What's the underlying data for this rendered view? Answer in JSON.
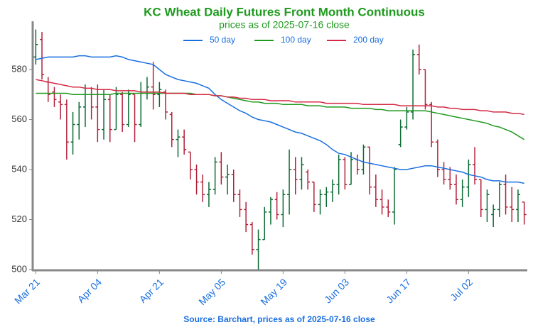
{
  "chart_data": {
    "type": "ohlc",
    "title": "KC Wheat Daily Futures Front Month Continuous",
    "subtitle": "prices as of 2025-07-16 close",
    "source": "Source: Barchart, prices as of 2025-07-16 close",
    "categories": [
      "Mar 21",
      null,
      null,
      null,
      null,
      null,
      null,
      null,
      null,
      null,
      "Apr 04",
      null,
      null,
      null,
      null,
      null,
      null,
      null,
      null,
      null,
      "Apr 21",
      null,
      null,
      null,
      null,
      null,
      null,
      null,
      null,
      null,
      "May 05",
      null,
      null,
      null,
      null,
      null,
      null,
      null,
      null,
      null,
      "May 19",
      null,
      null,
      null,
      null,
      null,
      null,
      null,
      null,
      null,
      "Jun 03",
      null,
      null,
      null,
      null,
      null,
      null,
      null,
      null,
      null,
      "Jun 17",
      null,
      null,
      null,
      null,
      null,
      null,
      null,
      null,
      null,
      "Jul 02",
      null,
      null,
      null,
      null,
      null,
      null,
      null,
      null,
      null
    ],
    "open": [
      585,
      592,
      575,
      571,
      567,
      566,
      551,
      558,
      565,
      570,
      565,
      556,
      568,
      556,
      570,
      558,
      570,
      558,
      571,
      573,
      570,
      571,
      562,
      552,
      553,
      547,
      540,
      535,
      530,
      532,
      543,
      537,
      538,
      530,
      524,
      518,
      508,
      512,
      523,
      528,
      522,
      530,
      540,
      536,
      539,
      535,
      526,
      530,
      531,
      534,
      544,
      534,
      544,
      540,
      549,
      533,
      528,
      525,
      523,
      550,
      557,
      563,
      586,
      580,
      566,
      551,
      540,
      536,
      534,
      528,
      533,
      542,
      536,
      524,
      522,
      524,
      534,
      525,
      524,
      527
    ],
    "high": [
      596,
      595,
      577,
      573,
      570,
      568,
      563,
      567,
      574,
      573,
      574,
      572,
      570,
      573,
      571,
      572,
      570,
      575,
      577,
      583,
      575,
      572,
      563,
      556,
      556,
      547,
      542,
      538,
      535,
      545,
      547,
      542,
      540,
      532,
      527,
      519,
      516,
      525,
      529,
      531,
      532,
      548,
      545,
      545,
      540,
      535,
      532,
      533,
      536,
      546,
      545,
      547,
      546,
      550,
      549,
      538,
      532,
      528,
      541,
      560,
      565,
      588,
      590,
      580,
      567,
      552,
      543,
      541,
      538,
      536,
      544,
      549,
      536,
      532,
      526,
      535,
      538,
      533,
      532,
      527
    ],
    "low": [
      582,
      576,
      567,
      565,
      560,
      544,
      546,
      552,
      557,
      560,
      551,
      552,
      551,
      556,
      555,
      557,
      551,
      557,
      568,
      564,
      565,
      560,
      549,
      545,
      546,
      536,
      530,
      527,
      525,
      530,
      534,
      530,
      527,
      521,
      515,
      506,
      500,
      512,
      518,
      520,
      517,
      522,
      530,
      532,
      532,
      523,
      522,
      525,
      527,
      530,
      532,
      534,
      538,
      538,
      530,
      525,
      522,
      521,
      518,
      549,
      556,
      560,
      578,
      564,
      549,
      537,
      534,
      532,
      526,
      525,
      529,
      534,
      521,
      519,
      517,
      521,
      522,
      519,
      519,
      518
    ],
    "close": [
      590,
      578,
      570,
      568,
      566,
      551,
      558,
      565,
      570,
      565,
      556,
      568,
      556,
      570,
      558,
      570,
      558,
      571,
      573,
      570,
      572,
      563,
      552,
      553,
      548,
      540,
      535,
      530,
      532,
      543,
      537,
      538,
      530,
      524,
      518,
      508,
      512,
      523,
      528,
      522,
      530,
      540,
      536,
      542,
      535,
      526,
      530,
      531,
      534,
      544,
      534,
      544,
      540,
      549,
      533,
      528,
      525,
      523,
      540,
      557,
      563,
      586,
      580,
      566,
      551,
      540,
      536,
      534,
      528,
      533,
      542,
      536,
      524,
      530,
      524,
      534,
      525,
      524,
      530,
      522
    ],
    "up_color": "#0b6b34",
    "down_color": "#b3203a",
    "series": [
      {
        "name": "50 day",
        "color": "#1a6fe0",
        "values": [
          584,
          584.5,
          585,
          585,
          585,
          585,
          585,
          585.5,
          585.5,
          585,
          585,
          585,
          585,
          585.5,
          585,
          584,
          583.5,
          583,
          582.5,
          582,
          580,
          578,
          577,
          576,
          575.5,
          575,
          574.5,
          573.5,
          572.5,
          570,
          568,
          566.5,
          565,
          563.5,
          562.5,
          561,
          560,
          559.5,
          559,
          558,
          557,
          556,
          555,
          554.5,
          553.5,
          552.5,
          551.5,
          550,
          548,
          546.5,
          546,
          545,
          544,
          543,
          542.5,
          542,
          541.5,
          541,
          540.5,
          540,
          540,
          540.5,
          541,
          541.5,
          541.5,
          541,
          540.5,
          540,
          539.5,
          539,
          538,
          537.5,
          537,
          536,
          535.5,
          535.5,
          535,
          535,
          535,
          534.5
        ]
      },
      {
        "name": "100 day",
        "color": "#1e9a1e",
        "values": [
          570.5,
          570.5,
          570.5,
          570.5,
          570.5,
          570.5,
          570,
          570,
          570,
          570,
          570,
          570,
          570,
          570.5,
          570.5,
          570.5,
          570.5,
          570.5,
          570.5,
          570.5,
          570.5,
          570.5,
          570.5,
          570.5,
          570.5,
          570.5,
          570,
          570,
          570,
          569.5,
          569.5,
          569,
          568.5,
          568,
          567.5,
          567,
          567,
          566.5,
          566.5,
          566.5,
          566,
          566,
          566,
          566,
          565.5,
          565.5,
          565.5,
          565,
          565,
          565,
          565,
          564.5,
          564.5,
          564.5,
          564.5,
          564,
          564,
          563.5,
          563.5,
          563.5,
          563.5,
          563.5,
          563.5,
          563.5,
          563,
          562.5,
          562,
          561.5,
          561,
          560.5,
          560,
          559.5,
          559,
          558.5,
          557.5,
          557,
          556,
          555,
          553.5,
          552
        ]
      },
      {
        "name": "200 day",
        "color": "#d42a45",
        "values": [
          576,
          575.5,
          575,
          574.5,
          574,
          573.5,
          573,
          573,
          572.5,
          572.5,
          572,
          572,
          572,
          571.5,
          571.5,
          571.5,
          571.5,
          571,
          571,
          571,
          571,
          570.5,
          570.5,
          570.5,
          570.5,
          570,
          570,
          570,
          570,
          569.5,
          569.5,
          569,
          569,
          568.5,
          568.5,
          568,
          568,
          568,
          567.5,
          567.5,
          567.5,
          567.5,
          567,
          567,
          567,
          567,
          567,
          566.5,
          566.5,
          566.5,
          566.5,
          566.5,
          566.5,
          566,
          566,
          566,
          566,
          566,
          566,
          565.5,
          565.5,
          565.5,
          565.5,
          565.5,
          565.5,
          565,
          565,
          564.5,
          564.5,
          564,
          564,
          564,
          563.5,
          563.5,
          563,
          563,
          563,
          562.5,
          562.5,
          562
        ]
      }
    ],
    "ylim": [
      500,
      599
    ],
    "yticks": [
      500,
      520,
      540,
      560,
      580
    ]
  }
}
